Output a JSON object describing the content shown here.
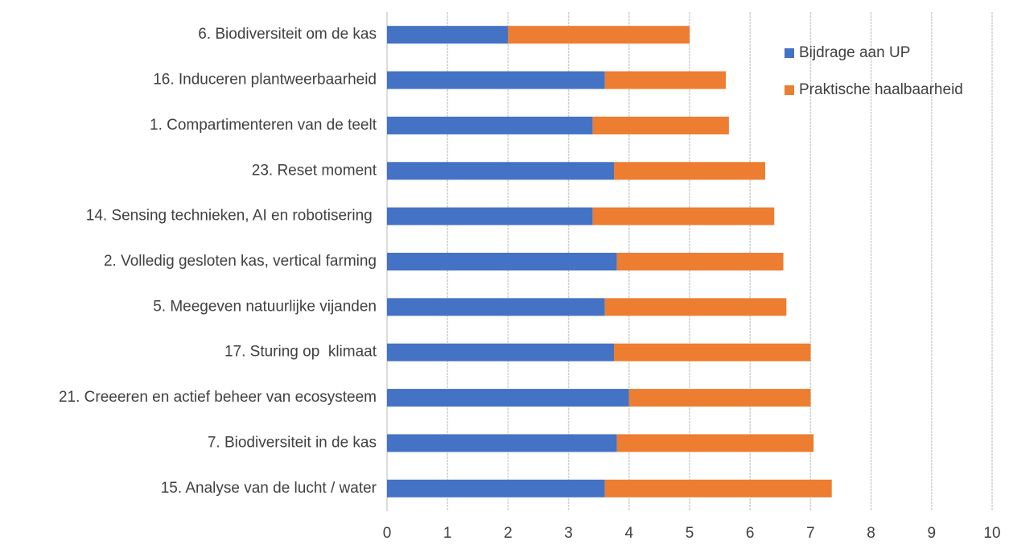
{
  "chart_data": {
    "type": "stacked-barh",
    "categories": [
      "6. Biodiversiteit om de kas",
      "16. Induceren plantweerbaarheid",
      "1. Compartimenteren van de teelt",
      "23. Reset moment",
      "14. Sensing technieken, AI en robotisering ",
      "2. Volledig gesloten kas, vertical farming",
      "5. Meegeven natuurlijke vijanden",
      "17. Sturing op  klimaat",
      "21. Creeeren en actief beheer van ecosysteem",
      "7. Biodiversiteit in de kas",
      "15. Analyse van de lucht / water"
    ],
    "series": [
      {
        "name": "Bijdrage aan UP",
        "color": "#4472c4",
        "values": [
          2.0,
          3.6,
          3.4,
          3.75,
          3.4,
          3.8,
          3.6,
          3.75,
          4.0,
          3.8,
          3.6
        ]
      },
      {
        "name": "Praktische haalbaarheid",
        "color": "#ed7d31",
        "values": [
          3.0,
          2.0,
          2.25,
          2.5,
          3.0,
          2.75,
          3.0,
          3.25,
          3.0,
          3.25,
          3.75
        ]
      }
    ],
    "xlim": [
      0,
      10
    ],
    "xticks": [
      0,
      1,
      2,
      3,
      4,
      5,
      6,
      7,
      8,
      9,
      10
    ],
    "grid": true,
    "legend": "upper right"
  }
}
